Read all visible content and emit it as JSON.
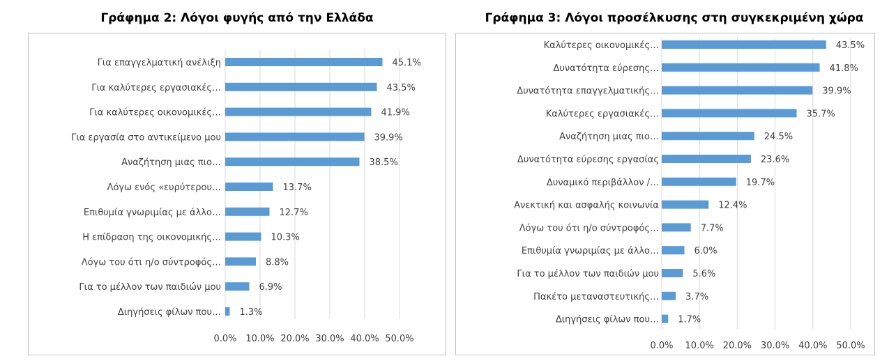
{
  "colors": {
    "bar": "#5b9bd5",
    "grid": "#d9d9d9",
    "frame": "#bfbfbf",
    "text": "#404040"
  },
  "chart_data": [
    {
      "type": "bar",
      "orientation": "horizontal",
      "title": "Γράφημα 2: Λόγοι φυγής από την Ελλάδα",
      "xlabel": "",
      "ylabel": "",
      "xlim": [
        0,
        50
      ],
      "tick_labels": [
        "0.0%",
        "10.0%",
        "20.0%",
        "30.0%",
        "40.0%",
        "50.0%"
      ],
      "grid": true,
      "legend": "none",
      "categories": [
        "Για επαγγελματική ανέλιξη",
        "Για καλύτερες εργασιακές…",
        "Για καλύτερες οικονομικές…",
        "Για εργασία στο αντικείμενο μου",
        "Αναζήτηση μιας πιο…",
        "Λόγω ενός «ευρύτερου…",
        "Επιθυμία γνωριμίας με άλλο…",
        "Η επίδραση της οικονομικής…",
        "Λόγω του ότι η/ο σύντροφός…",
        "Για το μέλλον των παιδιών μου",
        "Διηγήσεις φίλων που…"
      ],
      "values": [
        45.1,
        43.5,
        41.9,
        39.9,
        38.5,
        13.7,
        12.7,
        10.3,
        8.8,
        6.9,
        1.3
      ],
      "value_labels": [
        "45.1%",
        "43.5%",
        "41.9%",
        "39.9%",
        "38.5%",
        "13.7%",
        "12.7%",
        "10.3%",
        "8.8%",
        "6.9%",
        "1.3%"
      ]
    },
    {
      "type": "bar",
      "orientation": "horizontal",
      "title": "Γράφημα 3: Λόγοι προσέλκυσης στη συγκεκριμένη χώρα",
      "xlabel": "",
      "ylabel": "",
      "xlim": [
        0,
        50
      ],
      "tick_labels": [
        "0.0%",
        "10.0%",
        "20.0%",
        "30.0%",
        "40.0%",
        "50.0%"
      ],
      "grid": true,
      "legend": "none",
      "categories": [
        "Καλύτερες οικονομικές…",
        "Δυνατότητα εύρεσης…",
        "Δυνατότητα  επαγγελματικής…",
        "Καλύτερες εργασιακές…",
        "Αναζήτηση μιας πιο…",
        "Δυνατότητα εύρεσης εργασίας",
        "Δυναμικό  περιβάλλον /…",
        "Ανεκτική και ασφαλής κοινωνία",
        "Λόγω του ότι η/ο σύντροφός…",
        "Επιθυμία γνωριμίας με άλλο…",
        "Για το μέλλον των παιδιών μου",
        "Πακέτο μεταναστευτικής…",
        "Διηγήσεις φίλων που…"
      ],
      "values": [
        43.5,
        41.8,
        39.9,
        35.7,
        24.5,
        23.6,
        19.7,
        12.4,
        7.7,
        6.0,
        5.6,
        3.7,
        1.7
      ],
      "value_labels": [
        "43.5%",
        "41.8%",
        "39.9%",
        "35.7%",
        "24.5%",
        "23.6%",
        "19.7%",
        "12.4%",
        "7.7%",
        "6.0%",
        "5.6%",
        "3.7%",
        "1.7%"
      ]
    }
  ]
}
